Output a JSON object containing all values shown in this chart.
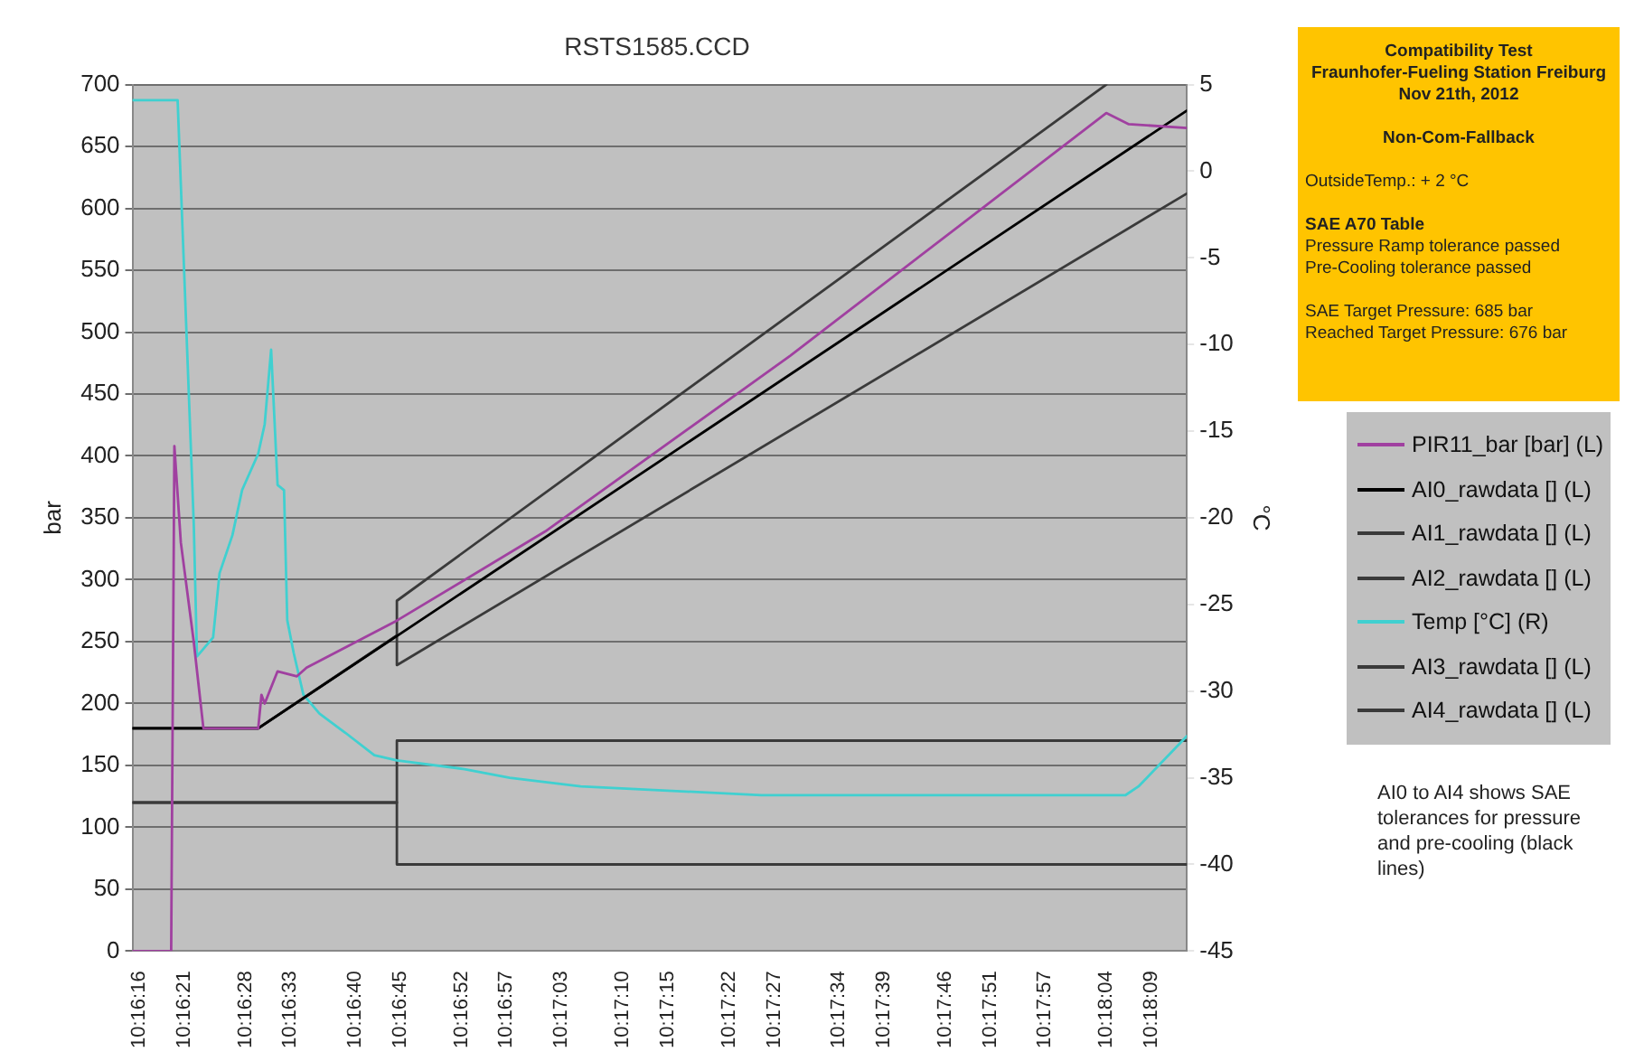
{
  "chart_data": {
    "type": "line",
    "title": "RSTS1585.CCD",
    "ylabel": "bar",
    "y2label": "°C",
    "xlim": [
      10.2709,
      10.3036
    ],
    "xticks": [
      {
        "value": 10.2711,
        "label": "10:16:16"
      },
      {
        "value": 10.2725,
        "label": "10:16:21"
      },
      {
        "value": 10.2744,
        "label": "10:16:28"
      },
      {
        "value": 10.2758,
        "label": "10:16:33"
      },
      {
        "value": 10.2778,
        "label": "10:16:40"
      },
      {
        "value": 10.2792,
        "label": "10:16:45"
      },
      {
        "value": 10.2811,
        "label": "10:16:52"
      },
      {
        "value": 10.2825,
        "label": "10:16:57"
      },
      {
        "value": 10.2842,
        "label": "10:17:03"
      },
      {
        "value": 10.2861,
        "label": "10:17:10"
      },
      {
        "value": 10.2875,
        "label": "10:17:15"
      },
      {
        "value": 10.2894,
        "label": "10:17:22"
      },
      {
        "value": 10.2908,
        "label": "10:17:27"
      },
      {
        "value": 10.2928,
        "label": "10:17:34"
      },
      {
        "value": 10.2942,
        "label": "10:17:39"
      },
      {
        "value": 10.2961,
        "label": "10:17:46"
      },
      {
        "value": 10.2975,
        "label": "10:17:51"
      },
      {
        "value": 10.2992,
        "label": "10:17:57"
      },
      {
        "value": 10.3011,
        "label": "10:18:04"
      },
      {
        "value": 10.3025,
        "label": "10:18:09"
      }
    ],
    "ylim": [
      0,
      700
    ],
    "yticks": [
      0,
      50,
      100,
      150,
      200,
      250,
      300,
      350,
      400,
      450,
      500,
      550,
      600,
      650,
      700
    ],
    "y2lim": [
      -45,
      5
    ],
    "y2ticks": [
      -45,
      -40,
      -35,
      -30,
      -25,
      -20,
      -15,
      -10,
      -5,
      0,
      5
    ],
    "grid": "y",
    "legend": "right",
    "marker": "none",
    "line_style": "solid",
    "series": [
      {
        "name": "PIR11_bar [bar] (L)",
        "color": "#a040a0",
        "x": [
          10.2709,
          10.2721,
          10.2722,
          10.2724,
          10.2728,
          10.2731,
          10.2748,
          10.2749,
          10.275,
          10.2754,
          10.276,
          10.2763,
          10.2791,
          10.2837,
          10.2913,
          10.3011,
          10.3018,
          10.3036
        ],
        "values": [
          0,
          0,
          408,
          330,
          250,
          180,
          180,
          207,
          200,
          226,
          222,
          229,
          267,
          339,
          481,
          677,
          668,
          665
        ]
      },
      {
        "name": "AI0_rawdata [] (L)",
        "color": "#000000",
        "x": [
          10.2709,
          10.2748,
          10.3036
        ],
        "values": [
          180,
          180,
          679
        ]
      },
      {
        "name": "AI1_rawdata [] (L)",
        "color": "#3a3a3a",
        "x": [
          10.2709,
          10.2748,
          10.2791,
          10.2791,
          10.3011
        ],
        "values": [
          180,
          180,
          255,
          283,
          700
        ]
      },
      {
        "name": "AI2_rawdata [] (L)",
        "color": "#3a3a3a",
        "x": [
          10.2709,
          10.2748,
          10.2791,
          10.2791,
          10.3036
        ],
        "values": [
          180,
          180,
          255,
          231,
          612
        ]
      },
      {
        "name": "Temp [°C] (R)",
        "color": "#40d0d0",
        "axis": "y2",
        "x": [
          10.2709,
          10.2723,
          10.2728,
          10.2729,
          10.2734,
          10.2736,
          10.274,
          10.2743,
          10.2748,
          10.275,
          10.2752,
          10.2754,
          10.2756,
          10.2757,
          10.2759,
          10.2762,
          10.2767,
          10.2775,
          10.2784,
          10.2791,
          10.2812,
          10.2826,
          10.2848,
          10.2904,
          10.3017,
          10.3021,
          10.3036
        ],
        "values": [
          4.1,
          4.1,
          -20.3,
          -28,
          -26.9,
          -23.2,
          -21,
          -18.4,
          -16.3,
          -14.6,
          -10.3,
          -18.1,
          -18.4,
          -25.9,
          -27.8,
          -30.2,
          -31.3,
          -32.4,
          -33.7,
          -34,
          -34.5,
          -35,
          -35.5,
          -36,
          -36,
          -35.5,
          -32.6
        ]
      },
      {
        "name": "AI3_rawdata [] (L)",
        "color": "#3a3a3a",
        "x": [
          10.2709,
          10.2791,
          10.2791,
          10.3036
        ],
        "values": [
          120,
          120,
          170,
          170
        ]
      },
      {
        "name": "AI4_rawdata [] (L)",
        "color": "#3a3a3a",
        "x": [
          10.2709,
          10.2791,
          10.2791,
          10.3036
        ],
        "values": [
          120,
          120,
          70,
          70
        ]
      }
    ],
    "annotations": [
      "Compatibility Test",
      "Fraunhofer-Fueling Station Freiburg",
      "Nov 21th, 2012",
      "Non-Com-Fallback",
      "OutsideTemp.: + 2 °C",
      "SAE A70 Table",
      "Pressure Ramp tolerance passed",
      "Pre-Cooling tolerance passed",
      "SAE Target Pressure: 685 bar",
      "Reached Target Pressure: 676 bar",
      "AI0 to AI4 shows SAE tolerances for pressure and pre-cooling (black lines)"
    ]
  }
}
